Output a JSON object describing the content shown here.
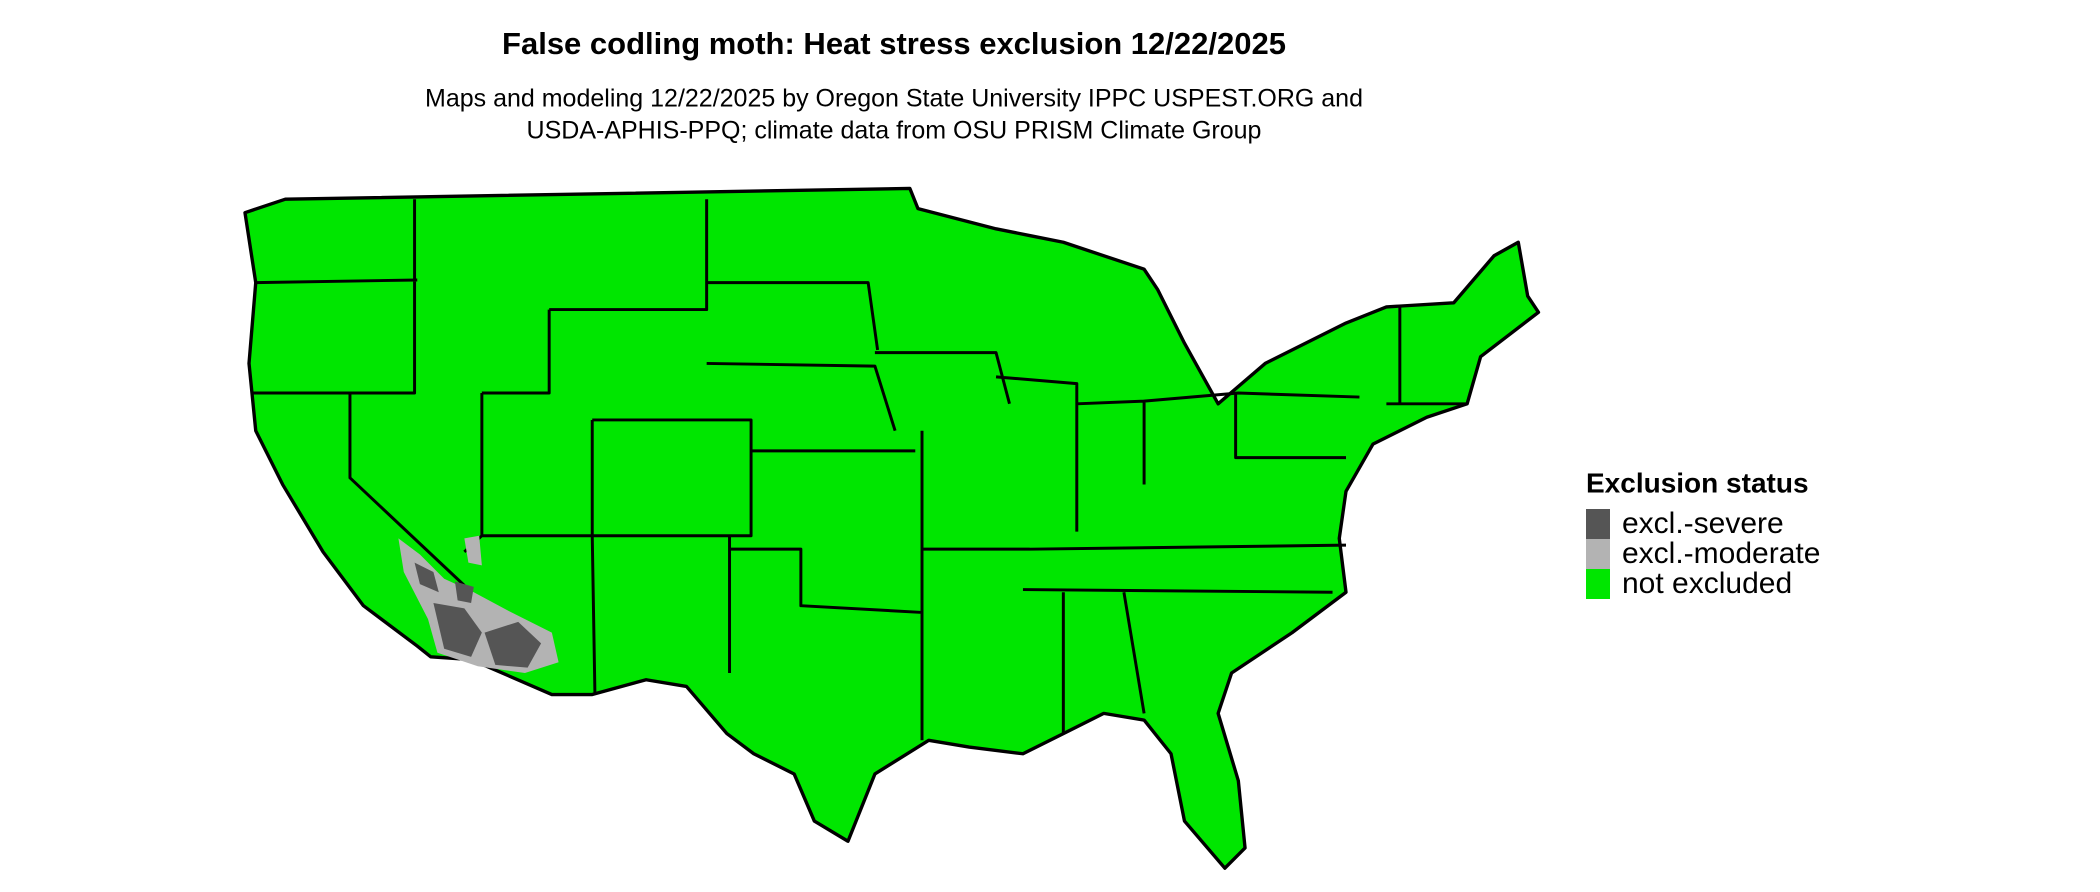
{
  "header": {
    "title": "False codling moth: Heat stress exclusion 12/22/2025",
    "subtitle_lines": [
      "Maps and modeling 12/22/2025 by Oregon State University IPPC USPEST.ORG and",
      "USDA-APHIS-PPQ; climate data from OSU PRISM Climate Group"
    ]
  },
  "legend": {
    "title": "Exclusion status",
    "items": [
      {
        "label": "excl.-severe",
        "color": "#555555"
      },
      {
        "label": "excl.-moderate",
        "color": "#b3b3b3"
      },
      {
        "label": "not excluded",
        "color": "#00e600"
      }
    ]
  }
}
